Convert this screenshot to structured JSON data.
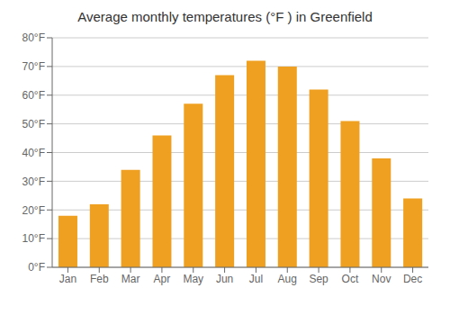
{
  "chart_data": {
    "type": "bar",
    "title": "Average monthly temperatures (°F ) in Greenfield",
    "categories": [
      "Jan",
      "Feb",
      "Mar",
      "Apr",
      "May",
      "Jun",
      "Jul",
      "Aug",
      "Sep",
      "Oct",
      "Nov",
      "Dec"
    ],
    "values": [
      18,
      22,
      34,
      46,
      57,
      67,
      72,
      70,
      62,
      51,
      38,
      24
    ],
    "color": "#F0A020",
    "ylim": [
      0,
      80
    ],
    "yticks": [
      {
        "value": 0,
        "label": "0°F"
      },
      {
        "value": 10,
        "label": "10°F"
      },
      {
        "value": 20,
        "label": "20°F"
      },
      {
        "value": 30,
        "label": "30°F"
      },
      {
        "value": 40,
        "label": "40°F"
      },
      {
        "value": 50,
        "label": "50°F"
      },
      {
        "value": 60,
        "label": "60°F"
      },
      {
        "value": 70,
        "label": "70°F"
      },
      {
        "value": 80,
        "label": "80°F"
      }
    ],
    "grid": true
  }
}
